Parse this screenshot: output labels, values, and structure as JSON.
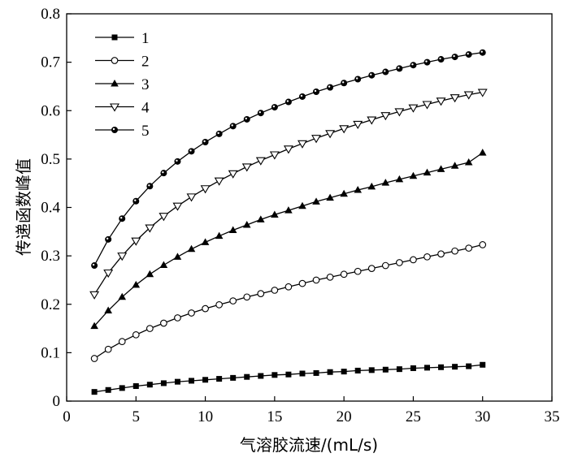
{
  "chart_data": {
    "type": "line",
    "xlabel": "气溶胶流速/(mL/s)",
    "ylabel": "传递函数峰值",
    "xlim": [
      0,
      35
    ],
    "ylim": [
      0,
      0.8
    ],
    "x_ticks": [
      "0",
      "5",
      "10",
      "15",
      "20",
      "25",
      "30",
      "35"
    ],
    "y_ticks": [
      "0",
      "0.1",
      "0.2",
      "0.3",
      "0.4",
      "0.5",
      "0.6",
      "0.7",
      "0.8"
    ],
    "x_tick_values": [
      0,
      5,
      10,
      15,
      20,
      25,
      30,
      35
    ],
    "y_tick_values": [
      0,
      0.1,
      0.2,
      0.3,
      0.4,
      0.5,
      0.6,
      0.7,
      0.8
    ],
    "grid": false,
    "legend_position": "top-left",
    "x": [
      2,
      3,
      4,
      5,
      6,
      7,
      8,
      9,
      10,
      11,
      12,
      13,
      14,
      15,
      16,
      17,
      18,
      19,
      20,
      21,
      22,
      23,
      24,
      25,
      26,
      27,
      28,
      29,
      30
    ],
    "series": [
      {
        "name": "1",
        "marker": "filled-square",
        "values": [
          0.019,
          0.023,
          0.027,
          0.031,
          0.034,
          0.037,
          0.04,
          0.042,
          0.044,
          0.046,
          0.048,
          0.05,
          0.052,
          0.054,
          0.055,
          0.057,
          0.058,
          0.06,
          0.061,
          0.063,
          0.064,
          0.065,
          0.066,
          0.068,
          0.069,
          0.07,
          0.071,
          0.072,
          0.075
        ]
      },
      {
        "name": "2",
        "marker": "open-circle",
        "values": [
          0.088,
          0.107,
          0.123,
          0.137,
          0.15,
          0.161,
          0.172,
          0.182,
          0.191,
          0.199,
          0.207,
          0.215,
          0.222,
          0.229,
          0.236,
          0.243,
          0.25,
          0.256,
          0.262,
          0.268,
          0.274,
          0.28,
          0.286,
          0.292,
          0.298,
          0.304,
          0.31,
          0.316,
          0.323
        ]
      },
      {
        "name": "3",
        "marker": "filled-triangle-up",
        "values": [
          0.155,
          0.187,
          0.215,
          0.24,
          0.262,
          0.281,
          0.298,
          0.314,
          0.328,
          0.341,
          0.353,
          0.364,
          0.375,
          0.385,
          0.394,
          0.403,
          0.412,
          0.42,
          0.428,
          0.436,
          0.443,
          0.451,
          0.458,
          0.465,
          0.472,
          0.479,
          0.486,
          0.493,
          0.513
        ]
      },
      {
        "name": "4",
        "marker": "open-triangle-down",
        "values": [
          0.22,
          0.265,
          0.3,
          0.331,
          0.358,
          0.382,
          0.403,
          0.422,
          0.439,
          0.455,
          0.47,
          0.484,
          0.497,
          0.509,
          0.521,
          0.532,
          0.543,
          0.553,
          0.563,
          0.572,
          0.581,
          0.59,
          0.598,
          0.606,
          0.613,
          0.62,
          0.627,
          0.633,
          0.638
        ]
      },
      {
        "name": "5",
        "marker": "filled-circle-dot",
        "values": [
          0.28,
          0.334,
          0.377,
          0.413,
          0.444,
          0.471,
          0.495,
          0.516,
          0.535,
          0.552,
          0.568,
          0.582,
          0.595,
          0.607,
          0.618,
          0.629,
          0.639,
          0.648,
          0.657,
          0.665,
          0.673,
          0.68,
          0.687,
          0.694,
          0.7,
          0.706,
          0.711,
          0.716,
          0.72
        ]
      }
    ]
  }
}
